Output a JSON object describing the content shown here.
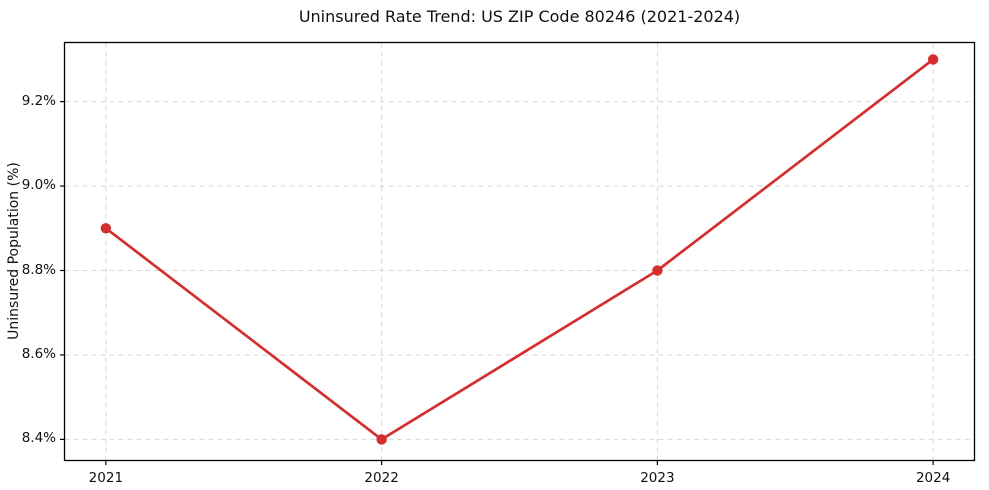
{
  "chart_data": {
    "type": "line",
    "title": "Uninsured Rate Trend: US ZIP Code 80246 (2021-2024)",
    "xlabel": "",
    "ylabel": "Uninsured Population (%)",
    "x": [
      2021,
      2022,
      2023,
      2024
    ],
    "values": [
      8.9,
      8.4,
      8.8,
      9.3
    ],
    "xlim": [
      2020.85,
      2024.15
    ],
    "ylim": [
      8.35,
      9.34
    ],
    "xticks": {
      "values": [
        2021,
        2022,
        2023,
        2024
      ],
      "labels": [
        "2021",
        "2022",
        "2023",
        "2024"
      ]
    },
    "yticks": {
      "values": [
        8.4,
        8.6,
        8.8,
        9.0,
        9.2
      ],
      "labels": [
        "8.4%",
        "8.6%",
        "8.8%",
        "9.0%",
        "9.2%"
      ]
    },
    "grid": true,
    "grid_style": "dashed",
    "legend": "none",
    "colors": {
      "line": "#d32f2f",
      "marker": "#d32f2f",
      "grid": "#d6d6d6",
      "spine": "#000000",
      "background": "#ffffff",
      "text": "#111111"
    }
  }
}
